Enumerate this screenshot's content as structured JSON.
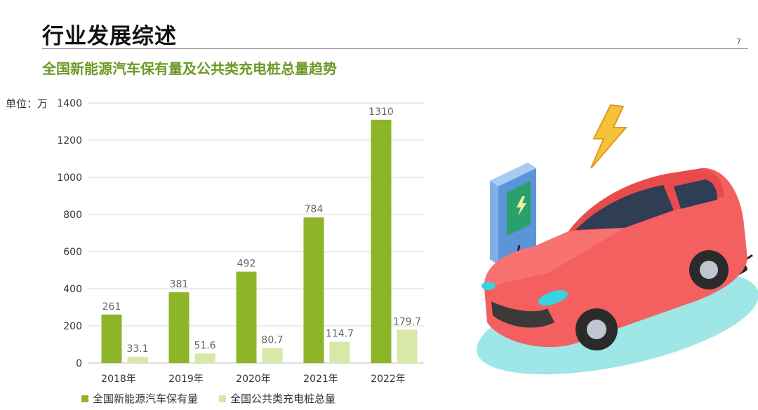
{
  "header": {
    "title": "行业发展综述",
    "page_number": "7",
    "subtitle": "全国新能源汽车保有量及公共类充电桩总量趋势"
  },
  "colors": {
    "series1": "#8db52a",
    "series2": "#d7e8a7",
    "grid": "#d9d9d9",
    "title_green": "#6a9a24"
  },
  "chart_data": {
    "type": "bar",
    "unit_label": "单位：万",
    "categories": [
      "2018年",
      "2019年",
      "2020年",
      "2021年",
      "2022年"
    ],
    "series": [
      {
        "name": "全国新能源汽车保有量",
        "values": [
          261,
          381,
          492,
          784,
          1310
        ]
      },
      {
        "name": "全国公共类充电桩总量",
        "values": [
          33.1,
          51.6,
          80.7,
          114.7,
          179.7
        ]
      }
    ],
    "ylim": [
      0,
      1400
    ],
    "yticks": [
      0,
      200,
      400,
      600,
      800,
      1000,
      1200,
      1400
    ],
    "grid": true,
    "legend_position": "bottom"
  },
  "illustration": {
    "name": "electric-car-charging"
  }
}
